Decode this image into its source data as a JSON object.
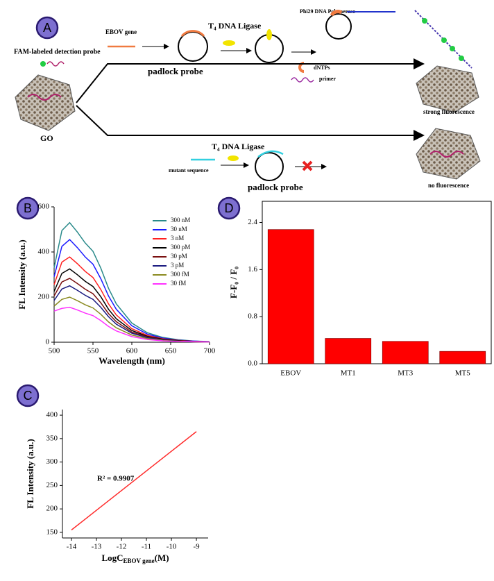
{
  "diagram": {
    "panel_a": "A",
    "ebov_gene": "EBOV gene",
    "ligase_top": "T₄ DNA Ligase",
    "polymerase": "Phi29 DNA Polymerase",
    "dntps": "dNTPs",
    "primer": "primer",
    "detection_probe": "FAM-labeled detection probe",
    "padlock_top": "padlock probe",
    "strong": "strong fluorescence",
    "go": "GO",
    "ligase_bottom": "T₄ DNA Ligase",
    "mutant": "mutant sequence",
    "padlock_bottom": "padlock probe",
    "none": "no fluorescence"
  },
  "chart_data": [
    {
      "type": "line",
      "panel": "B",
      "x_label": "Wavelength (nm)",
      "y_label": "FL Intensity (a.u.)",
      "x": [
        500,
        510,
        520,
        530,
        540,
        550,
        560,
        570,
        580,
        600,
        620,
        640,
        660,
        680,
        700
      ],
      "xlim": [
        500,
        700
      ],
      "xticks": [
        500,
        550,
        600,
        650,
        700
      ],
      "ylim": [
        0,
        600
      ],
      "yticks": [
        0,
        200,
        400,
        600
      ],
      "series": [
        {
          "name": "300 nM",
          "color": "#2a8a8a",
          "values": [
            330,
            495,
            530,
            488,
            440,
            403,
            329,
            239,
            170,
            85,
            42,
            21,
            11,
            5,
            3
          ]
        },
        {
          "name": "30 nM",
          "color": "#1a1aff",
          "values": [
            290,
            425,
            455,
            419,
            378,
            346,
            282,
            205,
            146,
            73,
            36,
            18,
            9,
            5,
            2
          ]
        },
        {
          "name": "3 nM",
          "color": "#ff2020",
          "values": [
            255,
            355,
            378,
            348,
            314,
            287,
            234,
            170,
            121,
            60,
            30,
            15,
            8,
            4,
            2
          ]
        },
        {
          "name": "300 pM",
          "color": "#000000",
          "values": [
            225,
            305,
            325,
            299,
            270,
            247,
            202,
            146,
            104,
            52,
            26,
            13,
            7,
            3,
            2
          ]
        },
        {
          "name": "30 pM",
          "color": "#7a1010",
          "values": [
            205,
            267,
            283,
            260,
            235,
            215,
            175,
            127,
            91,
            45,
            23,
            11,
            6,
            3,
            1
          ]
        },
        {
          "name": "3 pM",
          "color": "#1a1a80",
          "values": [
            185,
            236,
            250,
            230,
            208,
            190,
            155,
            113,
            80,
            40,
            20,
            10,
            5,
            3,
            1
          ]
        },
        {
          "name": "300 fM",
          "color": "#8a8a20",
          "values": [
            160,
            190,
            200,
            184,
            166,
            152,
            124,
            90,
            64,
            32,
            16,
            8,
            4,
            2,
            1
          ]
        },
        {
          "name": "30 fM",
          "color": "#ff30ff",
          "values": [
            138,
            150,
            155,
            143,
            129,
            118,
            96,
            70,
            50,
            25,
            12,
            6,
            3,
            2,
            1
          ]
        }
      ]
    },
    {
      "type": "bar",
      "panel": "D",
      "y_label": "F-F₀ / F₀",
      "categories": [
        "EBOV",
        "MT1",
        "MT3",
        "MT5"
      ],
      "values": [
        2.28,
        0.43,
        0.38,
        0.21
      ],
      "color": "#ff0000",
      "ylim": [
        0,
        2.76
      ],
      "yticks": [
        {
          "value": 0,
          "label": "0.0"
        },
        0.8,
        1.6,
        2.4
      ]
    },
    {
      "type": "line",
      "panel": "C",
      "x_label": "LogC",
      "x_label_sub": "EBOV gene",
      "x_label_unit": "(M)",
      "y_label": "FL Intensity (a.u.)",
      "annotation": "R² = 0.9907",
      "x": [
        -14,
        -9
      ],
      "xlim": [
        -14.36,
        -8.53
      ],
      "xticks": [
        -14,
        -13,
        -12,
        -11,
        -10,
        -9
      ],
      "ylim": [
        138,
        412
      ],
      "yticks": [
        150,
        200,
        250,
        300,
        350,
        400
      ],
      "series": [
        {
          "color": "#ff2a2a",
          "values": [
            155,
            365
          ]
        }
      ]
    }
  ]
}
